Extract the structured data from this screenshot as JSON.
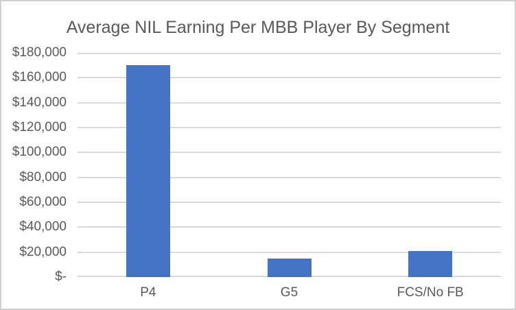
{
  "chart_data": {
    "type": "bar",
    "title": "Average NIL Earning Per MBB Player By Segment",
    "categories": [
      "P4",
      "G5",
      "FCS/No FB"
    ],
    "values": [
      170000,
      15000,
      21000
    ],
    "xlabel": "",
    "ylabel": "",
    "ylim": [
      0,
      180000
    ],
    "ytick_step": 20000,
    "ytick_labels": [
      "$-",
      "$20,000",
      "$40,000",
      "$60,000",
      "$80,000",
      "$100,000",
      "$120,000",
      "$140,000",
      "$160,000",
      "$180,000"
    ],
    "grid": true,
    "legend": false,
    "colors": {
      "bar": "#4472C4",
      "gridline": "#D9D9D9",
      "axis_line": "#D9D9D9",
      "text": "#595959",
      "frame_border": "#D0CECE",
      "background": "#FFFFFF"
    }
  }
}
